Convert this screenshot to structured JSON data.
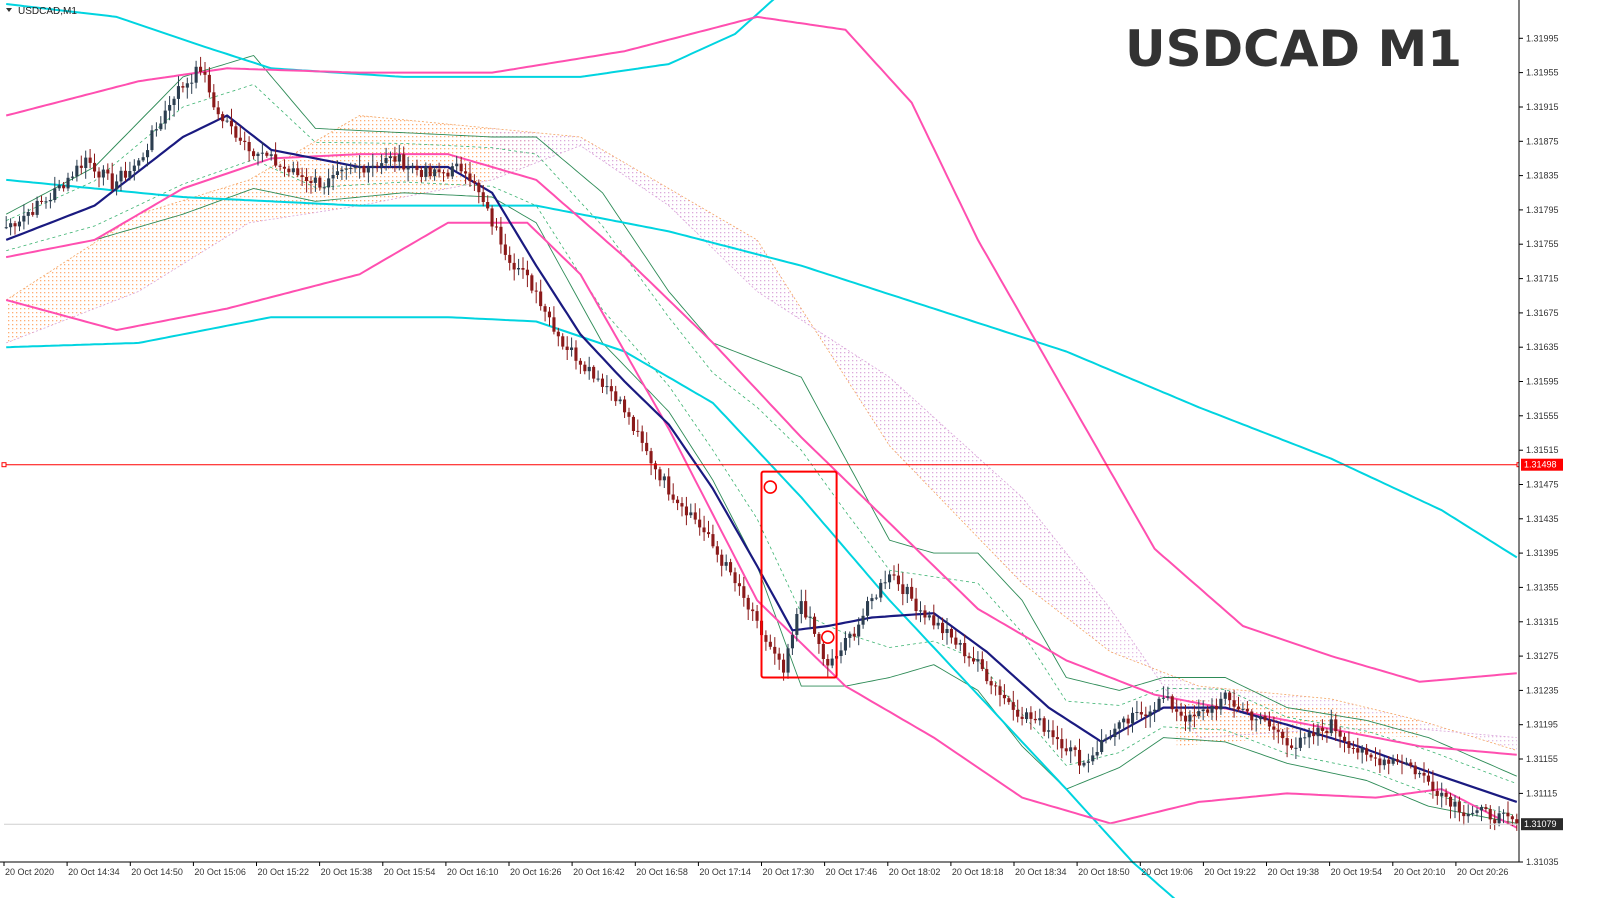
{
  "window": {
    "symbol_label": "USDCAD,M1",
    "overlay_title": "USDCAD M1"
  },
  "colors": {
    "background": "#ffffff",
    "candle_bull": "#2c3e50",
    "candle_bear": "#8b1a1a",
    "fast_ma": "#1a1a80",
    "bollinger_green": "#2e8b57",
    "bollinger_mid_dashed": "#3cb371",
    "cyan_envelope": "#00d4e0",
    "magenta_envelope": "#ff4fb0",
    "kumo_bear": "#d8a0d8",
    "kumo_bull": "#ff9f5a",
    "horizontal_line": "#ff0000",
    "highlight_box": "#ff0000",
    "axis_text": "#333333"
  },
  "chart_data": {
    "type": "candlestick",
    "title": "USDCAD M1",
    "ylim": [
      1.31035,
      1.32035
    ],
    "price_ticks": [
      "1.31995",
      "1.31955",
      "1.31915",
      "1.31875",
      "1.31835",
      "1.31795",
      "1.31755",
      "1.31715",
      "1.31675",
      "1.31635",
      "1.31595",
      "1.31555",
      "1.31515",
      "1.31475",
      "1.31435",
      "1.31395",
      "1.31355",
      "1.31315",
      "1.31275",
      "1.31235",
      "1.31195",
      "1.31155",
      "1.31115",
      "1.31035"
    ],
    "time_ticks": [
      "20 Oct 2020",
      "20 Oct 14:34",
      "20 Oct 14:50",
      "20 Oct 15:06",
      "20 Oct 15:22",
      "20 Oct 15:38",
      "20 Oct 15:54",
      "20 Oct 16:10",
      "20 Oct 16:26",
      "20 Oct 16:42",
      "20 Oct 16:58",
      "20 Oct 17:14",
      "20 Oct 17:30",
      "20 Oct 17:46",
      "20 Oct 18:02",
      "20 Oct 18:18",
      "20 Oct 18:34",
      "20 Oct 18:50",
      "20 Oct 19:06",
      "20 Oct 19:22",
      "20 Oct 19:38",
      "20 Oct 19:54",
      "20 Oct 20:10",
      "20 Oct 20:26"
    ],
    "horizontal_line": {
      "price": 1.31498,
      "label": "1.31498"
    },
    "current_price": {
      "price": 1.31079,
      "label": "1.31079"
    },
    "close_path": [
      [
        0,
        1.31775
      ],
      [
        10,
        1.3181
      ],
      [
        18,
        1.31855
      ],
      [
        24,
        1.31825
      ],
      [
        30,
        1.3185
      ],
      [
        38,
        1.3193
      ],
      [
        44,
        1.3196
      ],
      [
        48,
        1.31905
      ],
      [
        52,
        1.31885
      ],
      [
        56,
        1.31865
      ],
      [
        64,
        1.3184
      ],
      [
        72,
        1.31825
      ],
      [
        80,
        1.31845
      ],
      [
        88,
        1.31855
      ],
      [
        96,
        1.31835
      ],
      [
        104,
        1.31845
      ],
      [
        110,
        1.3178
      ],
      [
        114,
        1.3174
      ],
      [
        120,
        1.317
      ],
      [
        126,
        1.3164
      ],
      [
        132,
        1.3161
      ],
      [
        138,
        1.3158
      ],
      [
        144,
        1.3152
      ],
      [
        150,
        1.3147
      ],
      [
        156,
        1.31435
      ],
      [
        164,
        1.3137
      ],
      [
        170,
        1.3131
      ],
      [
        176,
        1.31255
      ],
      [
        180,
        1.3134
      ],
      [
        186,
        1.3126
      ],
      [
        192,
        1.31305
      ],
      [
        200,
        1.31375
      ],
      [
        206,
        1.31335
      ],
      [
        212,
        1.31305
      ],
      [
        220,
        1.31265
      ],
      [
        228,
        1.31215
      ],
      [
        236,
        1.3119
      ],
      [
        244,
        1.3115
      ],
      [
        250,
        1.31185
      ],
      [
        256,
        1.31205
      ],
      [
        262,
        1.31225
      ],
      [
        268,
        1.312
      ],
      [
        276,
        1.31225
      ],
      [
        284,
        1.312
      ],
      [
        292,
        1.3117
      ],
      [
        300,
        1.31195
      ],
      [
        308,
        1.31155
      ],
      [
        316,
        1.31155
      ],
      [
        324,
        1.3112
      ],
      [
        330,
        1.31095
      ],
      [
        336,
        1.3109
      ],
      [
        342,
        1.31079
      ]
    ],
    "series": [
      {
        "name": "fast-ma",
        "points": [
          [
            0,
            1.3176
          ],
          [
            20,
            1.318
          ],
          [
            40,
            1.3188
          ],
          [
            50,
            1.31905
          ],
          [
            60,
            1.31865
          ],
          [
            80,
            1.31845
          ],
          [
            100,
            1.31845
          ],
          [
            110,
            1.31815
          ],
          [
            120,
            1.3173
          ],
          [
            130,
            1.3165
          ],
          [
            140,
            1.31595
          ],
          [
            150,
            1.31545
          ],
          [
            160,
            1.3147
          ],
          [
            170,
            1.3138
          ],
          [
            178,
            1.31305
          ],
          [
            186,
            1.3131
          ],
          [
            196,
            1.3132
          ],
          [
            210,
            1.31325
          ],
          [
            222,
            1.3128
          ],
          [
            236,
            1.31215
          ],
          [
            248,
            1.31175
          ],
          [
            262,
            1.31215
          ],
          [
            276,
            1.31215
          ],
          [
            290,
            1.31195
          ],
          [
            306,
            1.3117
          ],
          [
            322,
            1.3114
          ],
          [
            342,
            1.31105
          ]
        ]
      },
      {
        "name": "magenta-mid",
        "points": [
          [
            0,
            1.3174
          ],
          [
            20,
            1.3176
          ],
          [
            40,
            1.3182
          ],
          [
            60,
            1.31855
          ],
          [
            80,
            1.3186
          ],
          [
            100,
            1.3186
          ],
          [
            120,
            1.3183
          ],
          [
            140,
            1.3174
          ],
          [
            160,
            1.3164
          ],
          [
            180,
            1.3153
          ],
          [
            200,
            1.3143
          ],
          [
            220,
            1.3133
          ],
          [
            240,
            1.3127
          ],
          [
            260,
            1.3123
          ],
          [
            280,
            1.3121
          ],
          [
            300,
            1.3119
          ],
          [
            320,
            1.3117
          ],
          [
            342,
            1.3116
          ]
        ]
      },
      {
        "name": "magenta-upper",
        "points": [
          [
            0,
            1.31905
          ],
          [
            30,
            1.31945
          ],
          [
            50,
            1.3196
          ],
          [
            80,
            1.31955
          ],
          [
            110,
            1.31955
          ],
          [
            140,
            1.3198
          ],
          [
            170,
            1.3202
          ],
          [
            190,
            1.32005
          ],
          [
            205,
            1.3192
          ],
          [
            220,
            1.3176
          ],
          [
            240,
            1.3158
          ],
          [
            260,
            1.314
          ],
          [
            280,
            1.3131
          ],
          [
            300,
            1.31275
          ],
          [
            320,
            1.31245
          ],
          [
            342,
            1.31255
          ]
        ]
      },
      {
        "name": "magenta-lower",
        "points": [
          [
            0,
            1.3169
          ],
          [
            25,
            1.31655
          ],
          [
            50,
            1.3168
          ],
          [
            80,
            1.3172
          ],
          [
            100,
            1.3178
          ],
          [
            118,
            1.3178
          ],
          [
            130,
            1.3172
          ],
          [
            150,
            1.3154
          ],
          [
            170,
            1.3134
          ],
          [
            190,
            1.3124
          ],
          [
            210,
            1.3118
          ],
          [
            230,
            1.3111
          ],
          [
            250,
            1.3108
          ],
          [
            270,
            1.31105
          ],
          [
            290,
            1.31115
          ],
          [
            310,
            1.3111
          ],
          [
            325,
            1.3112
          ],
          [
            342,
            1.31075
          ]
        ]
      },
      {
        "name": "cyan-upper",
        "points": [
          [
            0,
            1.32035
          ],
          [
            25,
            1.3202
          ],
          [
            45,
            1.31985
          ],
          [
            60,
            1.3196
          ],
          [
            90,
            1.3195
          ],
          [
            130,
            1.3195
          ],
          [
            150,
            1.31965
          ],
          [
            165,
            1.32
          ],
          [
            178,
            1.3206
          ]
        ]
      },
      {
        "name": "cyan-mid",
        "points": [
          [
            0,
            1.3183
          ],
          [
            40,
            1.3181
          ],
          [
            80,
            1.318
          ],
          [
            120,
            1.318
          ],
          [
            150,
            1.3177
          ],
          [
            180,
            1.3173
          ],
          [
            210,
            1.3168
          ],
          [
            240,
            1.3163
          ],
          [
            270,
            1.31565
          ],
          [
            300,
            1.31505
          ],
          [
            325,
            1.31445
          ],
          [
            342,
            1.3139
          ]
        ]
      },
      {
        "name": "cyan-lower",
        "points": [
          [
            0,
            1.31635
          ],
          [
            30,
            1.3164
          ],
          [
            60,
            1.3167
          ],
          [
            100,
            1.3167
          ],
          [
            120,
            1.31665
          ],
          [
            140,
            1.3163
          ],
          [
            160,
            1.3157
          ],
          [
            180,
            1.3146
          ],
          [
            200,
            1.3134
          ],
          [
            220,
            1.3123
          ],
          [
            240,
            1.3112
          ],
          [
            255,
            1.31035
          ],
          [
            265,
            1.3099
          ]
        ]
      },
      {
        "name": "bb-upper",
        "points": [
          [
            0,
            1.3179
          ],
          [
            20,
            1.31845
          ],
          [
            40,
            1.3195
          ],
          [
            56,
            1.31975
          ],
          [
            70,
            1.3189
          ],
          [
            90,
            1.31885
          ],
          [
            110,
            1.3188
          ],
          [
            120,
            1.3188
          ],
          [
            135,
            1.31815
          ],
          [
            150,
            1.317
          ],
          [
            160,
            1.3164
          ],
          [
            170,
            1.3162
          ],
          [
            180,
            1.316
          ],
          [
            190,
            1.31505
          ],
          [
            200,
            1.3141
          ],
          [
            210,
            1.31395
          ],
          [
            220,
            1.31395
          ],
          [
            230,
            1.3134
          ],
          [
            240,
            1.3125
          ],
          [
            252,
            1.31235
          ],
          [
            262,
            1.3125
          ],
          [
            276,
            1.3125
          ],
          [
            290,
            1.31215
          ],
          [
            308,
            1.312
          ],
          [
            322,
            1.3118
          ],
          [
            342,
            1.31135
          ]
        ]
      },
      {
        "name": "bb-lower",
        "points": [
          [
            0,
            1.3174
          ],
          [
            20,
            1.3176
          ],
          [
            40,
            1.3179
          ],
          [
            56,
            1.3182
          ],
          [
            70,
            1.31805
          ],
          [
            90,
            1.31815
          ],
          [
            110,
            1.3181
          ],
          [
            120,
            1.3178
          ],
          [
            135,
            1.3164
          ],
          [
            150,
            1.3156
          ],
          [
            160,
            1.3148
          ],
          [
            170,
            1.3138
          ],
          [
            180,
            1.3124
          ],
          [
            190,
            1.3124
          ],
          [
            200,
            1.3125
          ],
          [
            210,
            1.31265
          ],
          [
            220,
            1.31235
          ],
          [
            230,
            1.3117
          ],
          [
            240,
            1.3112
          ],
          [
            252,
            1.31145
          ],
          [
            262,
            1.3118
          ],
          [
            276,
            1.31175
          ],
          [
            290,
            1.3115
          ],
          [
            308,
            1.3113
          ],
          [
            322,
            1.311
          ],
          [
            342,
            1.3108
          ]
        ]
      }
    ],
    "highlight_box": {
      "price_top": 1.3149,
      "price_bottom": 1.3125,
      "bar_start": 171,
      "bar_end": 188
    },
    "markers": [
      {
        "bar": 173,
        "price": 1.31472
      },
      {
        "bar": 186,
        "price": 1.31297
      }
    ]
  }
}
